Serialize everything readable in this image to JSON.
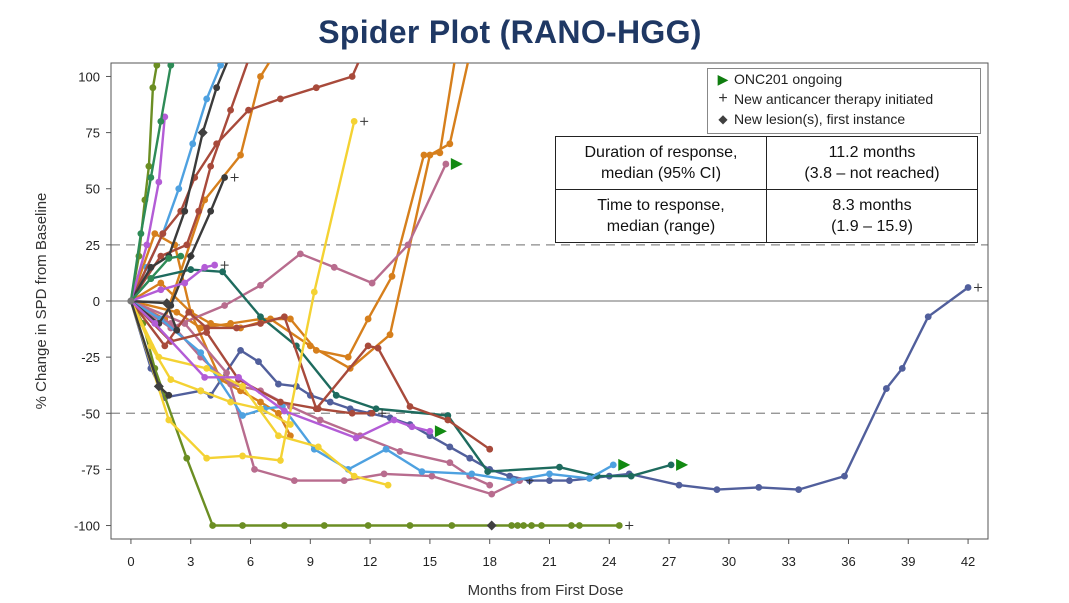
{
  "title": "Spider Plot (RANO-HGG)",
  "chart_data": {
    "type": "line",
    "title": "Spider Plot (RANO-HGG)",
    "xlabel": "Months from First Dose",
    "ylabel": "% Change in SPD from Baseline",
    "xlim": [
      -1,
      43
    ],
    "ylim": [
      -106,
      106
    ],
    "xticks": [
      0,
      3,
      6,
      9,
      12,
      15,
      18,
      21,
      24,
      27,
      30,
      33,
      36,
      39,
      42
    ],
    "yticks": [
      -100,
      -75,
      -50,
      -25,
      0,
      25,
      50,
      75,
      100
    ],
    "reference_lines": [
      25,
      0,
      -50
    ],
    "legend": [
      {
        "marker": "triangle",
        "label": "ONC201 ongoing"
      },
      {
        "marker": "plus",
        "label": "New anticancer therapy initiated"
      },
      {
        "marker": "diamond",
        "label": "New lesion(s), first instance"
      }
    ],
    "table": [
      {
        "label_line1": "Duration of response,",
        "label_line2": "median (95% CI)",
        "value_line1": "11.2 months",
        "value_line2": "(3.8 – not reached)"
      },
      {
        "label_line1": "Time to response,",
        "label_line2": "median (range)",
        "value_line1": "8.3 months",
        "value_line2": "(1.9 – 15.9)"
      }
    ],
    "series": [
      {
        "name": "patient-01",
        "color": "#515f9c",
        "x": [
          0,
          1,
          1.7,
          3.5,
          4,
          5.5,
          6.4,
          7.4,
          8.3,
          9,
          10,
          11,
          12,
          13,
          14,
          15,
          16,
          17,
          18,
          19,
          20,
          21,
          22,
          23,
          24,
          25,
          27.5,
          29.4,
          31.5,
          33.5,
          35.8,
          37.9,
          38.7,
          40,
          42
        ],
        "y": [
          0,
          -30,
          -43,
          -40,
          -42,
          -22,
          -27,
          -37,
          -38,
          -42,
          -45,
          -48,
          -50,
          -52,
          -55,
          -60,
          -65,
          -70,
          -75,
          -78,
          -80,
          -80,
          -80,
          -79,
          -78,
          -77,
          -82,
          -84,
          -83,
          -84,
          -78,
          -39,
          -30,
          -7,
          6
        ],
        "end": "plus"
      },
      {
        "name": "patient-02",
        "color": "#6b8e23",
        "x": [
          0,
          0.6,
          1.2,
          2.8,
          4.1,
          5.6,
          7.7,
          9.7,
          11.9,
          14,
          16.1,
          18.1,
          19.1,
          19.4,
          19.7,
          20.1,
          20.6,
          22.1,
          22.5,
          24.5
        ],
        "y": [
          0,
          -10,
          -30,
          -70,
          -100,
          -100,
          -100,
          -100,
          -100,
          -100,
          -100,
          -100,
          -100,
          -100,
          -100,
          -100,
          -100,
          -100,
          -100,
          -100
        ],
        "end": "plus",
        "diamond_at": 18.1
      },
      {
        "name": "patient-03",
        "color": "#6b8e23",
        "x": [
          0,
          0.4,
          0.7,
          0.9,
          1.1,
          1.3,
          1.5
        ],
        "y": [
          0,
          20,
          45,
          60,
          95,
          105,
          110
        ]
      },
      {
        "name": "patient-04",
        "color": "#d67f1c",
        "x": [
          0,
          1.5,
          3,
          4,
          5.5,
          7,
          9,
          11,
          13,
          15,
          16,
          17
        ],
        "y": [
          0,
          8,
          -5,
          -10,
          -12,
          -8,
          -20,
          -30,
          -15,
          65,
          70,
          110
        ]
      },
      {
        "name": "patient-05",
        "color": "#d67f1c",
        "x": [
          0,
          1.2,
          2.2,
          3,
          4.5,
          5.5,
          6.5,
          7.4,
          8
        ],
        "y": [
          0,
          30,
          25,
          -5,
          -35,
          -40,
          -45,
          -50,
          -60
        ]
      },
      {
        "name": "patient-06",
        "color": "#d67f1c",
        "x": [
          0,
          1.7,
          3.7,
          5.5,
          6.5,
          7.2
        ],
        "y": [
          0,
          -8,
          45,
          65,
          100,
          110
        ]
      },
      {
        "name": "patient-07",
        "color": "#d67f1c",
        "x": [
          0,
          2.3,
          3.5,
          5,
          6.5,
          8,
          9.3,
          10.9,
          11.9,
          13.1,
          14.7,
          15.5,
          16.3
        ],
        "y": [
          0,
          -5,
          -12,
          -10,
          -8,
          -8,
          -22,
          -25,
          -8,
          11,
          65,
          66,
          110
        ]
      },
      {
        "name": "patient-08",
        "color": "#b86c8e",
        "x": [
          0,
          2,
          4.7,
          6.5,
          8.5,
          10.2,
          12.1,
          13.9,
          15.8
        ],
        "y": [
          0,
          -12,
          -2,
          7,
          21,
          15,
          8,
          25,
          61
        ],
        "end": "triangle"
      },
      {
        "name": "patient-09",
        "color": "#b86c8e",
        "x": [
          0,
          2.7,
          4.8,
          6.2,
          8.2,
          10.7,
          12.7,
          15.1,
          18.1,
          19.5
        ],
        "y": [
          0,
          -10,
          -32,
          -75,
          -80,
          -80,
          -77,
          -78,
          -86,
          -80
        ],
        "end": "plus"
      },
      {
        "name": "patient-10",
        "color": "#b86c8e",
        "x": [
          0,
          1,
          2,
          3.5,
          5,
          6.5,
          8,
          9.5,
          11.5,
          13.5,
          16,
          17,
          18
        ],
        "y": [
          0,
          -5,
          -10,
          -25,
          -37,
          -40,
          -47,
          -53,
          -60,
          -67,
          -72,
          -78,
          -82
        ]
      },
      {
        "name": "patient-11",
        "color": "#1e6b5e",
        "x": [
          0,
          1,
          3,
          4.6,
          6.5,
          8.3,
          10.3,
          12.3,
          15.9,
          17.9,
          21.5,
          23.4,
          25.1,
          27.1
        ],
        "y": [
          0,
          10,
          14,
          13,
          -7,
          -20,
          -42,
          -48,
          -51,
          -76,
          -74,
          -78,
          -78,
          -73
        ],
        "end": "triangle"
      },
      {
        "name": "patient-12",
        "color": "#4ea1e0",
        "x": [
          0,
          1.5,
          3.5,
          5.6,
          6.7,
          7.6,
          9.2,
          10.9,
          12.8,
          14.6,
          17.1,
          19.2,
          21,
          23,
          24.2
        ],
        "y": [
          0,
          -8,
          -23,
          -51,
          -48,
          -47,
          -66,
          -75,
          -66,
          -76,
          -77,
          -80,
          -77,
          -79,
          -73
        ],
        "end": "triangle"
      },
      {
        "name": "patient-13",
        "color": "#4ea1e0",
        "x": [
          0,
          0.8,
          1.6,
          2.4,
          3.1,
          3.8,
          4.5,
          5
        ],
        "y": [
          0,
          15,
          30,
          50,
          70,
          90,
          105,
          110
        ]
      },
      {
        "name": "patient-14",
        "color": "#a84a3b",
        "x": [
          0,
          1.7,
          2.9,
          3.8,
          5.3,
          6.5,
          7.7,
          9.3,
          11.9,
          12.4,
          14,
          15.9,
          18
        ],
        "y": [
          0,
          -20,
          -5,
          -12,
          -12,
          -10,
          -7,
          -48,
          -20,
          -21,
          -47,
          -53,
          -66
        ]
      },
      {
        "name": "patient-15",
        "color": "#a84a3b",
        "x": [
          0,
          1.5,
          2.8,
          3.4,
          4,
          5,
          6
        ],
        "y": [
          0,
          20,
          25,
          40,
          60,
          85,
          110
        ]
      },
      {
        "name": "patient-16",
        "color": "#a84a3b",
        "x": [
          0,
          1.6,
          2.5,
          3.2,
          4.3,
          5.9,
          7.5,
          9.3,
          11.1,
          11.6
        ],
        "y": [
          0,
          30,
          40,
          55,
          70,
          85,
          90,
          95,
          100,
          110
        ]
      },
      {
        "name": "patient-17",
        "color": "#a84a3b",
        "x": [
          0,
          2,
          3.8,
          5.4,
          7.5,
          9.4,
          11.1,
          12.1
        ],
        "y": [
          0,
          -18,
          -14,
          -35,
          -45,
          -48,
          -50,
          -50
        ],
        "end": "plus"
      },
      {
        "name": "patient-18",
        "color": "#f4d233",
        "x": [
          0,
          1.4,
          3.8,
          5.6,
          7.4,
          9.4,
          11.2,
          12.9
        ],
        "y": [
          0,
          -25,
          -30,
          -38,
          -60,
          -65,
          -78,
          -82
        ]
      },
      {
        "name": "patient-19",
        "color": "#f4d233",
        "x": [
          0,
          1.9,
          3.8,
          5.6,
          7.5,
          9.2,
          11.2
        ],
        "y": [
          0,
          -53,
          -70,
          -69,
          -71,
          4,
          80
        ],
        "end": "plus"
      },
      {
        "name": "patient-20",
        "color": "#f4d233",
        "x": [
          0,
          1,
          2,
          3.5,
          5,
          6.5,
          8
        ],
        "y": [
          0,
          -20,
          -35,
          -40,
          -45,
          -48,
          -55
        ]
      },
      {
        "name": "patient-21",
        "color": "#3b3b3b",
        "x": [
          0,
          1.4,
          2,
          3,
          4,
          4.7
        ],
        "y": [
          0,
          -10,
          -2,
          20,
          40,
          55
        ],
        "end": "plus"
      },
      {
        "name": "patient-22",
        "color": "#3b3b3b",
        "x": [
          0,
          1,
          1.9,
          2.7,
          3.6,
          4.3,
          5
        ],
        "y": [
          0,
          15,
          20,
          40,
          75,
          95,
          110
        ],
        "diamond_at": 3.6
      },
      {
        "name": "patient-23",
        "color": "#3b3b3b",
        "x": [
          0,
          1.4,
          1.9
        ],
        "y": [
          0,
          -38,
          -42
        ],
        "diamond_at": 1.4
      },
      {
        "name": "patient-24",
        "color": "#3b3b3b",
        "x": [
          0,
          1.8,
          2.3
        ],
        "y": [
          0,
          -1,
          -13
        ],
        "diamond_at": 1.8
      },
      {
        "name": "patient-25",
        "color": "#b35cd6",
        "x": [
          0,
          1.2,
          3.7,
          5.4,
          7.7,
          11.3,
          13.2,
          14.1,
          15
        ],
        "y": [
          0,
          -10,
          -34,
          -34,
          -49,
          -61,
          -53,
          -56,
          -58
        ],
        "end": "triangle"
      },
      {
        "name": "patient-26",
        "color": "#b35cd6",
        "x": [
          0,
          0.8,
          1.4,
          1.7
        ],
        "y": [
          0,
          25,
          53,
          82
        ]
      },
      {
        "name": "patient-27",
        "color": "#b35cd6",
        "x": [
          0,
          1.5,
          2.7,
          3.7,
          4.2
        ],
        "y": [
          0,
          5,
          8,
          15,
          16
        ],
        "end": "plus"
      },
      {
        "name": "patient-28",
        "color": "#2e8b57",
        "x": [
          0,
          0.5,
          1,
          1.5,
          2,
          2.5
        ],
        "y": [
          0,
          30,
          55,
          80,
          105,
          110
        ]
      },
      {
        "name": "patient-29",
        "color": "#2e8b57",
        "x": [
          0,
          1,
          1.9,
          2.5
        ],
        "y": [
          0,
          10,
          19,
          20
        ],
        "end": "plus"
      }
    ]
  }
}
